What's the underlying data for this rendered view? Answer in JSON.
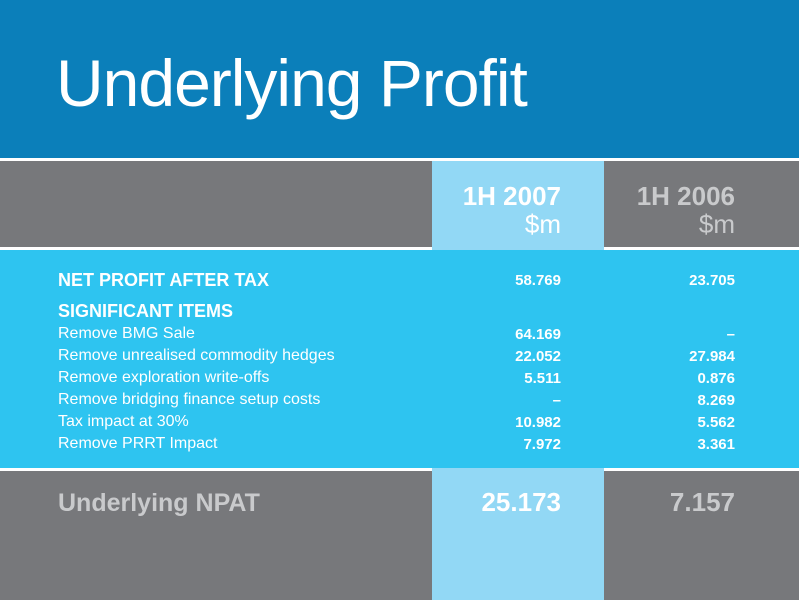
{
  "title": "Underlying Profit",
  "columns": [
    {
      "period": "1H 2007",
      "unit": "$m"
    },
    {
      "period": "1H 2006",
      "unit": "$m"
    }
  ],
  "net_profit": {
    "label": "NET PROFIT AFTER TAX",
    "v2007": "58.769",
    "v2006": "23.705"
  },
  "significant_items_heading": "SIGNIFICANT ITEMS",
  "items": [
    {
      "label": "Remove BMG Sale",
      "v2007": "64.169",
      "v2006": "–"
    },
    {
      "label": "Remove unrealised commodity hedges",
      "v2007": "22.052",
      "v2006": "27.984"
    },
    {
      "label": "Remove exploration write-offs",
      "v2007": "5.511",
      "v2006": "0.876"
    },
    {
      "label": "Remove bridging finance setup costs",
      "v2007": "–",
      "v2006": "8.269"
    },
    {
      "label": "Tax impact at 30%",
      "v2007": "10.982",
      "v2006": "5.562"
    },
    {
      "label": "Remove PRRT Impact",
      "v2007": "7.972",
      "v2006": "3.361"
    }
  ],
  "underlying": {
    "label": "Underlying NPAT",
    "v2007": "25.173",
    "v2006": "7.157"
  },
  "colors": {
    "title_band": "#0b7fba",
    "data_band": "#2ec4f0",
    "highlight_column": "#92d8f5",
    "grey": "#77787b"
  }
}
